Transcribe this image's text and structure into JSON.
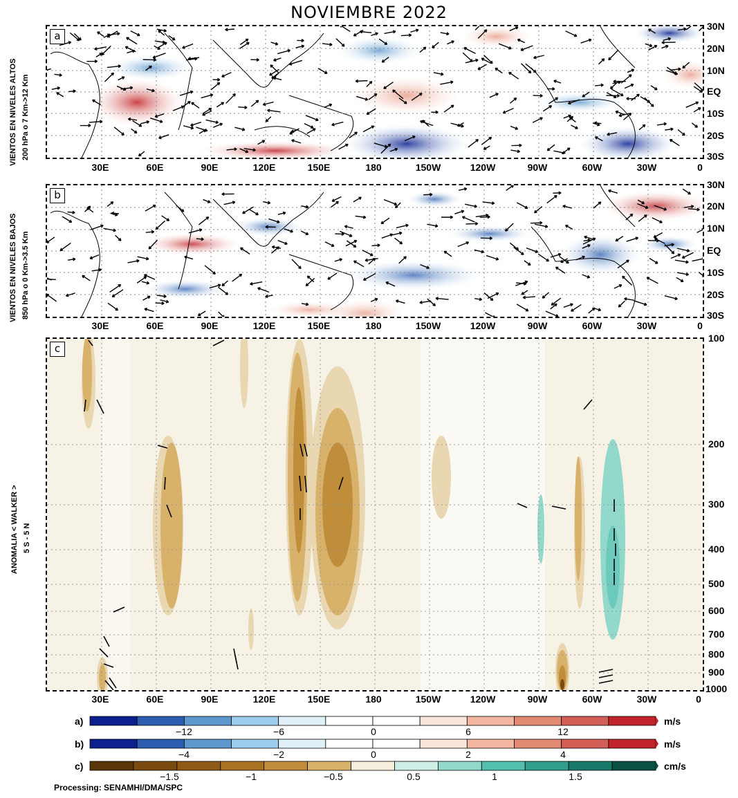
{
  "title": "NOVIEMBRE 2022",
  "panels": {
    "a": {
      "tag": "a",
      "ylabel_1": "VIENTOS EN NIVELES ALTOS",
      "ylabel_2": "200 hPa o 7 Km->12 Km",
      "lat_labels": [
        "30N",
        "20N",
        "10N",
        "EQ",
        "10S",
        "20S",
        "30S"
      ]
    },
    "b": {
      "tag": "b",
      "ylabel_1": "VIENTOS EN NIVELES BAJOS",
      "ylabel_2": "850 hPa o 0 Km->3.5 Km",
      "lat_labels": [
        "30N",
        "20N",
        "10N",
        "EQ",
        "10S",
        "20S",
        "30S"
      ]
    },
    "c": {
      "tag": "c",
      "ylabel_1": "ANOMALIA < WALKER >",
      "ylabel_2": "5 S - 5 N",
      "pressure_labels": [
        "100",
        "200",
        "300",
        "400",
        "500",
        "600",
        "700",
        "800",
        "900",
        "1000"
      ]
    }
  },
  "lon_labels": [
    "30E",
    "60E",
    "90E",
    "120E",
    "150E",
    "180",
    "150W",
    "120W",
    "90W",
    "60W",
    "30W",
    "0"
  ],
  "colorbars": {
    "a": {
      "letter": "a)",
      "unit": "m/s",
      "ticks": [
        "−12",
        "−6",
        "0",
        "6",
        "12"
      ],
      "colors": [
        "#0b1f8e",
        "#2a5db0",
        "#5c97cd",
        "#9ccbeb",
        "#e1eff8",
        "#ffffff",
        "#ffffff",
        "#fbe6dc",
        "#f3b6a0",
        "#e38a74",
        "#d35f57",
        "#c0232a"
      ]
    },
    "b": {
      "letter": "b)",
      "unit": "m/s",
      "ticks": [
        "−4",
        "−2",
        "0",
        "2",
        "4"
      ],
      "colors": [
        "#0b1f8e",
        "#2a5db0",
        "#5c97cd",
        "#9ccbeb",
        "#e1eff8",
        "#ffffff",
        "#ffffff",
        "#fbe6dc",
        "#f3b6a0",
        "#e38a74",
        "#d35f57",
        "#c0232a"
      ]
    },
    "c": {
      "letter": "c)",
      "unit": "cm/s",
      "ticks": [
        "−1.5",
        "−1",
        "−0.5",
        "0.5",
        "1",
        "1.5"
      ],
      "colors": [
        "#5a3506",
        "#7a4a0f",
        "#8f5a16",
        "#a87322",
        "#c08d3b",
        "#d8b26b",
        "#f5eedc",
        "#cdeee6",
        "#92d9cc",
        "#52bfaf",
        "#2f9e8d",
        "#177a69",
        "#0b4e42"
      ]
    }
  },
  "credit": "Processing:  SENAMHI/DMA/SPC",
  "colors": {
    "contour_brown": "#c9a055",
    "contour_teal": "#7fd3c4",
    "anom_red": "#c0232a",
    "anom_blue": "#2a5db0"
  }
}
